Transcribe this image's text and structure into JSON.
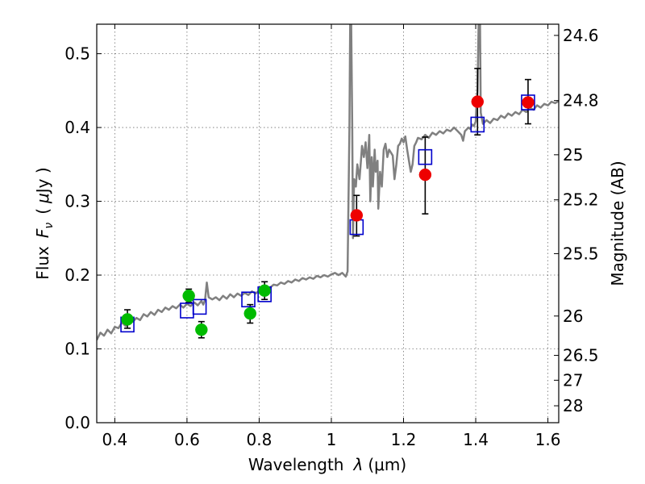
{
  "chart_data": {
    "type": "scatter",
    "title": "",
    "xlabel_text": "Wavelength",
    "xlabel_symbol": "λ",
    "xlabel_unit": "(μm)",
    "ylabel_text": "Flux",
    "ylabel_symbol": "F",
    "ylabel_sub": "ν",
    "ylabel_unit_open": "(",
    "ylabel_unit_mu": "μ",
    "ylabel_unit_rest": "Jy )",
    "y2label": "Magnitude (AB)",
    "xlim": [
      0.35,
      1.63
    ],
    "ylim": [
      0.0,
      0.54
    ],
    "x_ticks": [
      {
        "value": 0.4,
        "label": "0.4"
      },
      {
        "value": 0.6,
        "label": "0.6"
      },
      {
        "value": 0.8,
        "label": "0.8"
      },
      {
        "value": 1.0,
        "label": "1"
      },
      {
        "value": 1.2,
        "label": "1.2"
      },
      {
        "value": 1.4,
        "label": "1.4"
      },
      {
        "value": 1.6,
        "label": "1.6"
      }
    ],
    "y_ticks": [
      {
        "value": 0.0,
        "label": "0.0"
      },
      {
        "value": 0.1,
        "label": "0.1"
      },
      {
        "value": 0.2,
        "label": "0.2"
      },
      {
        "value": 0.3,
        "label": "0.3"
      },
      {
        "value": 0.4,
        "label": "0.4"
      },
      {
        "value": 0.5,
        "label": "0.5"
      }
    ],
    "y2_ticks": [
      {
        "label": "24.6"
      },
      {
        "label": "24.8"
      },
      {
        "label": "25"
      },
      {
        "label": "25.2"
      },
      {
        "label": "25.5"
      },
      {
        "label": "26"
      },
      {
        "label": "26.5"
      },
      {
        "label": "27"
      },
      {
        "label": "28"
      }
    ],
    "grid": true,
    "series": [
      {
        "kind": "line",
        "color": "#808080",
        "points": [
          [
            0.35,
            0.112
          ],
          [
            0.36,
            0.122
          ],
          [
            0.37,
            0.118
          ],
          [
            0.38,
            0.126
          ],
          [
            0.39,
            0.121
          ],
          [
            0.4,
            0.13
          ],
          [
            0.41,
            0.128
          ],
          [
            0.42,
            0.136
          ],
          [
            0.43,
            0.131
          ],
          [
            0.44,
            0.14
          ],
          [
            0.45,
            0.137
          ],
          [
            0.46,
            0.142
          ],
          [
            0.47,
            0.139
          ],
          [
            0.48,
            0.147
          ],
          [
            0.49,
            0.144
          ],
          [
            0.5,
            0.15
          ],
          [
            0.51,
            0.146
          ],
          [
            0.52,
            0.153
          ],
          [
            0.53,
            0.15
          ],
          [
            0.54,
            0.156
          ],
          [
            0.55,
            0.153
          ],
          [
            0.56,
            0.158
          ],
          [
            0.57,
            0.155
          ],
          [
            0.58,
            0.16
          ],
          [
            0.59,
            0.156
          ],
          [
            0.6,
            0.161
          ],
          [
            0.61,
            0.158
          ],
          [
            0.62,
            0.163
          ],
          [
            0.63,
            0.159
          ],
          [
            0.64,
            0.165
          ],
          [
            0.645,
            0.16
          ],
          [
            0.65,
            0.166
          ],
          [
            0.655,
            0.19
          ],
          [
            0.66,
            0.17
          ],
          [
            0.67,
            0.167
          ],
          [
            0.68,
            0.17
          ],
          [
            0.69,
            0.166
          ],
          [
            0.7,
            0.172
          ],
          [
            0.71,
            0.168
          ],
          [
            0.72,
            0.174
          ],
          [
            0.73,
            0.17
          ],
          [
            0.74,
            0.175
          ],
          [
            0.75,
            0.172
          ],
          [
            0.76,
            0.176
          ],
          [
            0.77,
            0.173
          ],
          [
            0.78,
            0.178
          ],
          [
            0.79,
            0.175
          ],
          [
            0.8,
            0.179
          ],
          [
            0.81,
            0.176
          ],
          [
            0.82,
            0.181
          ],
          [
            0.83,
            0.183
          ],
          [
            0.84,
            0.187
          ],
          [
            0.85,
            0.186
          ],
          [
            0.86,
            0.19
          ],
          [
            0.87,
            0.188
          ],
          [
            0.88,
            0.192
          ],
          [
            0.89,
            0.19
          ],
          [
            0.9,
            0.194
          ],
          [
            0.91,
            0.192
          ],
          [
            0.92,
            0.196
          ],
          [
            0.93,
            0.194
          ],
          [
            0.94,
            0.197
          ],
          [
            0.95,
            0.195
          ],
          [
            0.96,
            0.199
          ],
          [
            0.97,
            0.197
          ],
          [
            0.98,
            0.2
          ],
          [
            0.99,
            0.198
          ],
          [
            1.0,
            0.201
          ],
          [
            1.01,
            0.203
          ],
          [
            1.02,
            0.2
          ],
          [
            1.03,
            0.203
          ],
          [
            1.04,
            0.198
          ],
          [
            1.045,
            0.205
          ],
          [
            1.05,
            0.4
          ],
          [
            1.052,
            0.54
          ],
          [
            1.055,
            0.54
          ],
          [
            1.058,
            0.4
          ],
          [
            1.06,
            0.25
          ],
          [
            1.063,
            0.33
          ],
          [
            1.068,
            0.32
          ],
          [
            1.072,
            0.35
          ],
          [
            1.078,
            0.33
          ],
          [
            1.082,
            0.355
          ],
          [
            1.085,
            0.375
          ],
          [
            1.09,
            0.36
          ],
          [
            1.095,
            0.38
          ],
          [
            1.1,
            0.345
          ],
          [
            1.105,
            0.39
          ],
          [
            1.108,
            0.3
          ],
          [
            1.112,
            0.36
          ],
          [
            1.115,
            0.32
          ],
          [
            1.12,
            0.37
          ],
          [
            1.123,
            0.34
          ],
          [
            1.128,
            0.355
          ],
          [
            1.13,
            0.29
          ],
          [
            1.135,
            0.34
          ],
          [
            1.14,
            0.32
          ],
          [
            1.145,
            0.37
          ],
          [
            1.15,
            0.378
          ],
          [
            1.155,
            0.36
          ],
          [
            1.16,
            0.37
          ],
          [
            1.17,
            0.362
          ],
          [
            1.175,
            0.33
          ],
          [
            1.18,
            0.35
          ],
          [
            1.185,
            0.375
          ],
          [
            1.19,
            0.378
          ],
          [
            1.195,
            0.385
          ],
          [
            1.2,
            0.38
          ],
          [
            1.205,
            0.388
          ],
          [
            1.21,
            0.37
          ],
          [
            1.215,
            0.355
          ],
          [
            1.22,
            0.34
          ],
          [
            1.225,
            0.35
          ],
          [
            1.23,
            0.375
          ],
          [
            1.235,
            0.38
          ],
          [
            1.24,
            0.386
          ],
          [
            1.25,
            0.384
          ],
          [
            1.26,
            0.39
          ],
          [
            1.27,
            0.386
          ],
          [
            1.28,
            0.393
          ],
          [
            1.29,
            0.39
          ],
          [
            1.3,
            0.395
          ],
          [
            1.31,
            0.392
          ],
          [
            1.32,
            0.397
          ],
          [
            1.33,
            0.395
          ],
          [
            1.34,
            0.4
          ],
          [
            1.35,
            0.395
          ],
          [
            1.36,
            0.39
          ],
          [
            1.365,
            0.382
          ],
          [
            1.37,
            0.395
          ],
          [
            1.38,
            0.4
          ],
          [
            1.385,
            0.398
          ],
          [
            1.39,
            0.404
          ],
          [
            1.395,
            0.402
          ],
          [
            1.4,
            0.408
          ],
          [
            1.402,
            0.43
          ],
          [
            1.405,
            0.45
          ],
          [
            1.408,
            0.54
          ],
          [
            1.412,
            0.54
          ],
          [
            1.414,
            0.42
          ],
          [
            1.42,
            0.405
          ],
          [
            1.43,
            0.41
          ],
          [
            1.44,
            0.406
          ],
          [
            1.45,
            0.412
          ],
          [
            1.46,
            0.41
          ],
          [
            1.47,
            0.416
          ],
          [
            1.48,
            0.413
          ],
          [
            1.49,
            0.419
          ],
          [
            1.5,
            0.416
          ],
          [
            1.51,
            0.421
          ],
          [
            1.52,
            0.418
          ],
          [
            1.53,
            0.424
          ],
          [
            1.54,
            0.421
          ],
          [
            1.55,
            0.427
          ],
          [
            1.56,
            0.424
          ],
          [
            1.57,
            0.43
          ],
          [
            1.58,
            0.427
          ],
          [
            1.59,
            0.432
          ],
          [
            1.6,
            0.43
          ],
          [
            1.61,
            0.435
          ],
          [
            1.62,
            0.433
          ],
          [
            1.63,
            0.436
          ]
        ]
      },
      {
        "kind": "open-square",
        "color": "#0000cc",
        "points": [
          {
            "x": 0.435,
            "y": 0.133
          },
          {
            "x": 0.6,
            "y": 0.152
          },
          {
            "x": 0.635,
            "y": 0.157
          },
          {
            "x": 0.77,
            "y": 0.167
          },
          {
            "x": 0.815,
            "y": 0.174
          },
          {
            "x": 1.07,
            "y": 0.265
          },
          {
            "x": 1.26,
            "y": 0.36
          },
          {
            "x": 1.405,
            "y": 0.404
          },
          {
            "x": 1.545,
            "y": 0.434
          }
        ]
      },
      {
        "kind": "filled-circle",
        "color": "#00bb00",
        "points": [
          {
            "x": 0.435,
            "y": 0.14,
            "lo": 0.128,
            "hi": 0.153
          },
          {
            "x": 0.605,
            "y": 0.172,
            "lo": 0.163,
            "hi": 0.181
          },
          {
            "x": 0.64,
            "y": 0.126,
            "lo": 0.115,
            "hi": 0.137
          },
          {
            "x": 0.775,
            "y": 0.148,
            "lo": 0.135,
            "hi": 0.16
          },
          {
            "x": 0.815,
            "y": 0.179,
            "lo": 0.167,
            "hi": 0.191
          }
        ]
      },
      {
        "kind": "filled-circle",
        "color": "#ee0000",
        "points": [
          {
            "x": 1.07,
            "y": 0.281,
            "lo": 0.253,
            "hi": 0.308
          },
          {
            "x": 1.26,
            "y": 0.336,
            "lo": 0.283,
            "hi": 0.387
          },
          {
            "x": 1.405,
            "y": 0.435,
            "lo": 0.39,
            "hi": 0.48
          },
          {
            "x": 1.545,
            "y": 0.434,
            "lo": 0.405,
            "hi": 0.465
          }
        ]
      }
    ]
  }
}
